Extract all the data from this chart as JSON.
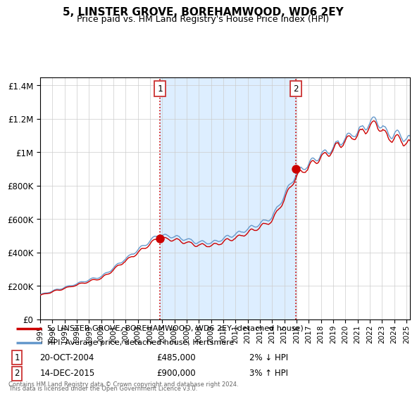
{
  "title": "5, LINSTER GROVE, BOREHAMWOOD, WD6 2EY",
  "subtitle": "Price paid vs. HM Land Registry's House Price Index (HPI)",
  "sale1_date": "20-OCT-2004",
  "sale1_price": 485000,
  "sale1_label": "2% ↓ HPI",
  "sale1_year": 2004.8,
  "sale2_date": "14-DEC-2015",
  "sale2_price": 900000,
  "sale2_label": "3% ↑ HPI",
  "sale2_year": 2015.95,
  "line_color_red": "#cc0000",
  "line_color_blue": "#6699cc",
  "shading_color": "#ddeeff",
  "grid_color": "#cccccc",
  "background_color": "#ffffff",
  "legend1_text": "5, LINSTER GROVE, BOREHAMWOOD, WD6 2EY (detached house)",
  "legend2_text": "HPI: Average price, detached house, Hertsmere",
  "footer1": "Contains HM Land Registry data © Crown copyright and database right 2024.",
  "footer2": "This data is licensed under the Open Government Licence v3.0.",
  "ylim": [
    0,
    1450000
  ],
  "yticks": [
    0,
    200000,
    400000,
    600000,
    800000,
    1000000,
    1200000,
    1400000
  ],
  "ytick_labels": [
    "£0",
    "£200K",
    "£400K",
    "£600K",
    "£800K",
    "£1M",
    "£1.2M",
    "£1.4M"
  ],
  "xlim_start": 1995,
  "xlim_end": 2025.3
}
